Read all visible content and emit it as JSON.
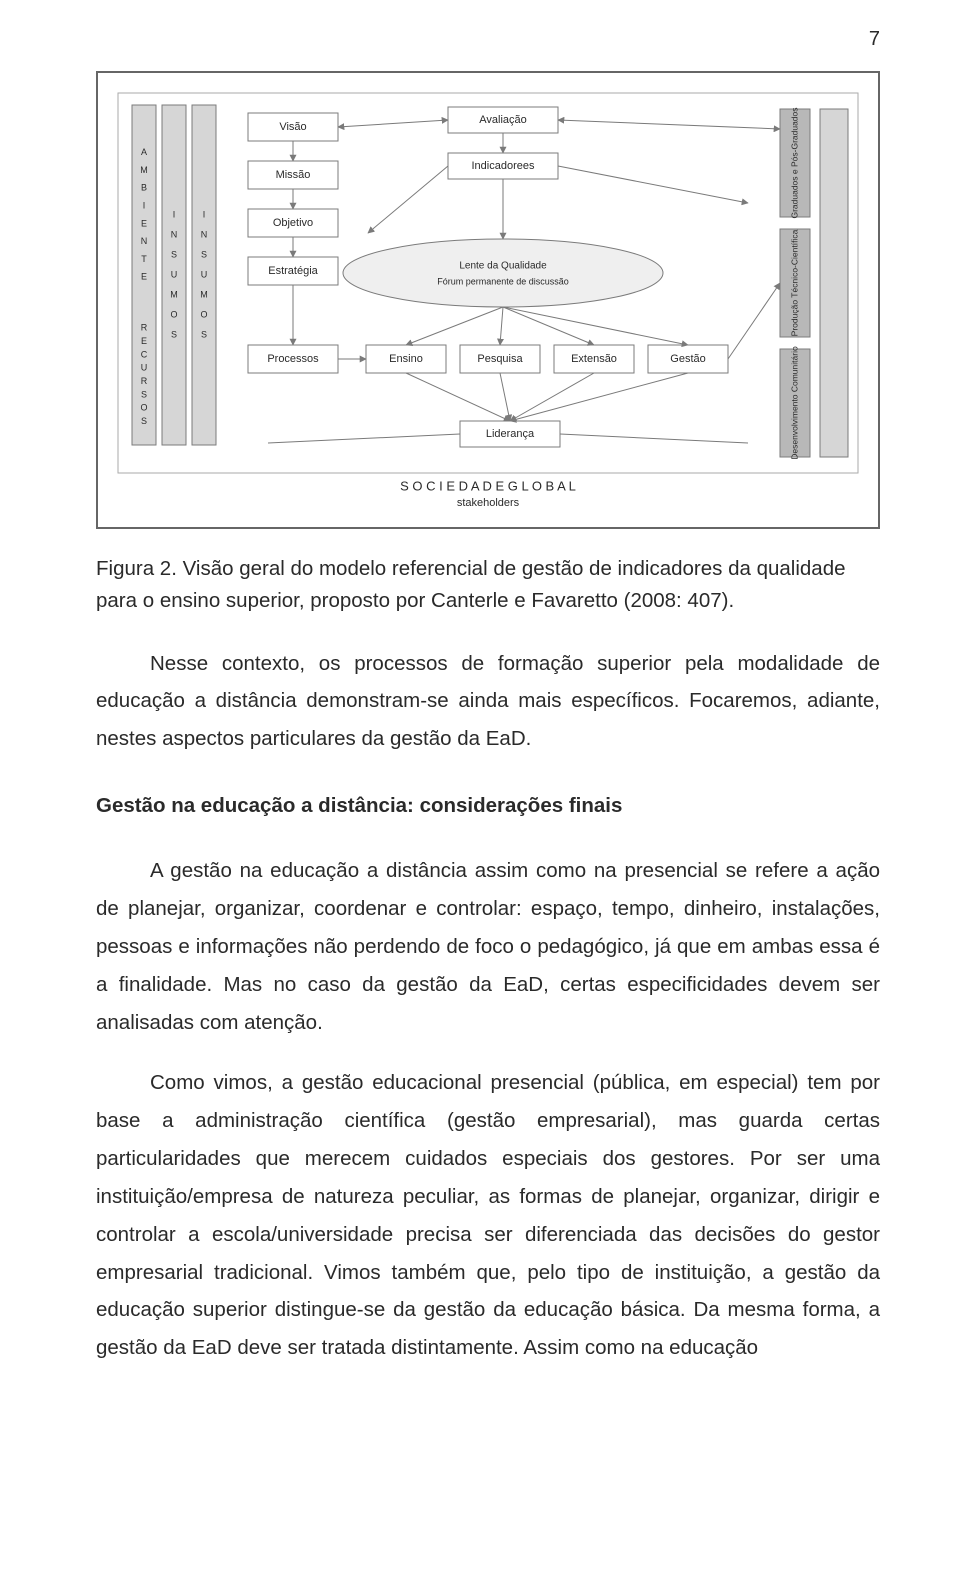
{
  "page_number": "7",
  "figure": {
    "background": "#ffffff",
    "outer_border_color": "#666666",
    "node_border_color": "#7b7b7b",
    "node_fill": "#ffffff",
    "bar_fill": "#d6d6d6",
    "bar_fill_dark": "#b8b8b8",
    "edge_color": "#7a7a7a",
    "font_family": "Arial",
    "left_bars": [
      "A M B I E N T E",
      "R E C U R S O S",
      "I N S U M O S"
    ],
    "left_col_nodes": [
      "Visão",
      "Missão",
      "Objetivo",
      "Estratégia",
      "Processos"
    ],
    "top_center_nodes": [
      "Avaliação",
      "Indicadorees"
    ],
    "ellipse_lines": [
      "Lente da Qualidade",
      "Fórum permanente de discussão"
    ],
    "bottom_row_nodes": [
      "Ensino",
      "Pesquisa",
      "Extensão",
      "Gestão"
    ],
    "bottom_center_node": "Liderança",
    "right_bars": [
      "Graduados e Pós-Graduados",
      "Produção Técnico-Científica",
      "Desenvolvimento Comunitário"
    ],
    "footer_lines": [
      "S O C I E D A D E   G L O B A L",
      "stakeholders"
    ]
  },
  "caption": "Figura 2. Visão geral do modelo referencial de gestão de indicadores da qualidade para o ensino superior, proposto por Canterle e Favaretto (2008: 407).",
  "para1": "Nesse contexto, os processos de formação superior pela modalidade de educação a distância demonstram-se ainda mais específicos. Focaremos, adiante, nestes aspectos particulares da gestão da EaD.",
  "heading": "Gestão na educação a distância: considerações finais",
  "para2": "A gestão na educação a distância assim como na presencial se refere a ação de planejar, organizar, coordenar e controlar: espaço, tempo, dinheiro, instalações, pessoas e informações não perdendo de foco o pedagógico, já que em ambas essa é a finalidade. Mas no caso da gestão da EaD, certas especificidades devem ser analisadas com atenção.",
  "para3": "Como vimos, a gestão educacional presencial (pública, em especial) tem por base a administração científica (gestão empresarial), mas guarda certas particularidades que merecem cuidados especiais dos gestores. Por ser uma instituição/empresa de natureza peculiar, as formas de planejar, organizar, dirigir e controlar a escola/universidade precisa ser diferenciada das decisões do gestor empresarial tradicional. Vimos também que, pelo tipo de instituição, a gestão da educação superior distingue-se da gestão da educação básica. Da mesma forma, a gestão da EaD deve ser tratada distintamente. Assim como na educação"
}
